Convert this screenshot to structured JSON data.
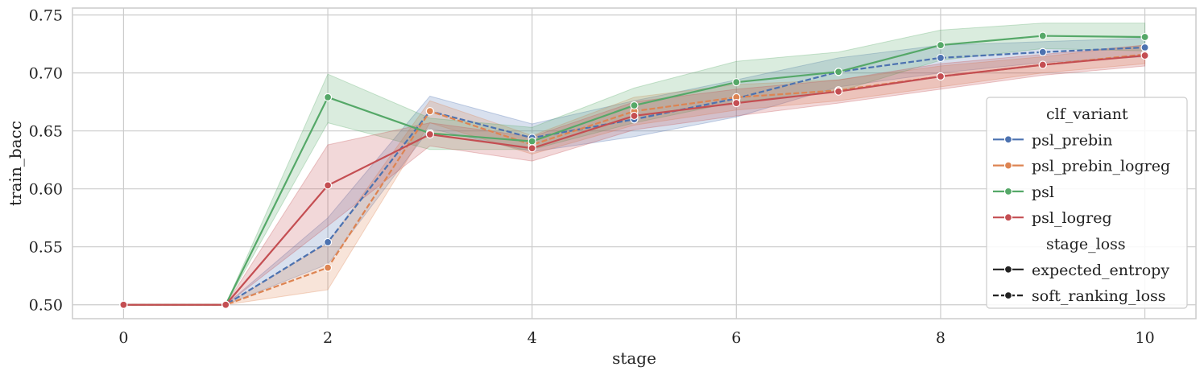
{
  "chart_data": {
    "type": "line",
    "xlabel": "stage",
    "ylabel": "train_bacc",
    "xlim": [
      -0.5,
      10.5
    ],
    "ylim": [
      0.488,
      0.756
    ],
    "x_ticks": [
      0,
      2,
      4,
      6,
      8,
      10
    ],
    "y_ticks": [
      0.5,
      0.55,
      0.6,
      0.65,
      0.7,
      0.75
    ],
    "y_tick_labels": [
      "0.50",
      "0.55",
      "0.60",
      "0.65",
      "0.70",
      "0.75"
    ],
    "grid": true,
    "legend_position": "lower-right",
    "x": [
      0,
      1,
      2,
      3,
      4,
      5,
      6,
      7,
      8,
      9,
      10
    ],
    "series": [
      {
        "name": "psl_prebin",
        "color": "#4c72b0",
        "style": "dashed",
        "values": [
          0.5,
          0.5,
          0.554,
          0.667,
          0.644,
          0.66,
          0.678,
          0.701,
          0.713,
          0.718,
          0.722
        ],
        "lower": [
          0.5,
          0.5,
          0.535,
          0.652,
          0.632,
          0.645,
          0.662,
          0.688,
          0.7,
          0.709,
          0.714
        ],
        "upper": [
          0.5,
          0.5,
          0.575,
          0.68,
          0.656,
          0.676,
          0.694,
          0.713,
          0.724,
          0.727,
          0.73
        ]
      },
      {
        "name": "psl_prebin_logreg",
        "color": "#dd8452",
        "style": "dashed",
        "values": [
          0.5,
          0.5,
          0.532,
          0.667,
          0.638,
          0.667,
          0.679,
          0.685,
          0.697,
          0.707,
          0.716
        ],
        "lower": [
          0.5,
          0.5,
          0.513,
          0.657,
          0.63,
          0.655,
          0.668,
          0.676,
          0.688,
          0.7,
          0.708
        ],
        "upper": [
          0.5,
          0.5,
          0.553,
          0.676,
          0.646,
          0.679,
          0.69,
          0.694,
          0.706,
          0.714,
          0.724
        ]
      },
      {
        "name": "psl",
        "color": "#55a868",
        "style": "solid",
        "values": [
          0.5,
          0.5,
          0.679,
          0.648,
          0.641,
          0.672,
          0.692,
          0.701,
          0.724,
          0.732,
          0.731
        ],
        "lower": [
          0.5,
          0.5,
          0.657,
          0.634,
          0.634,
          0.657,
          0.675,
          0.684,
          0.711,
          0.721,
          0.719
        ],
        "upper": [
          0.5,
          0.5,
          0.699,
          0.661,
          0.653,
          0.687,
          0.71,
          0.718,
          0.737,
          0.743,
          0.743
        ]
      },
      {
        "name": "psl_logreg",
        "color": "#c44e52",
        "style": "solid",
        "values": [
          0.5,
          0.5,
          0.603,
          0.647,
          0.635,
          0.663,
          0.674,
          0.684,
          0.697,
          0.707,
          0.715
        ],
        "lower": [
          0.5,
          0.5,
          0.568,
          0.637,
          0.624,
          0.651,
          0.663,
          0.674,
          0.686,
          0.698,
          0.706
        ],
        "upper": [
          0.5,
          0.5,
          0.638,
          0.657,
          0.645,
          0.675,
          0.686,
          0.694,
          0.708,
          0.716,
          0.724
        ]
      }
    ],
    "legend": {
      "hue_title": "clf_variant",
      "hue_entries": [
        "psl_prebin",
        "psl_prebin_logreg",
        "psl",
        "psl_logreg"
      ],
      "style_title": "stage_loss",
      "style_entries": [
        {
          "name": "expected_entropy",
          "style": "solid"
        },
        {
          "name": "soft_ranking_loss",
          "style": "dashed"
        }
      ]
    }
  }
}
